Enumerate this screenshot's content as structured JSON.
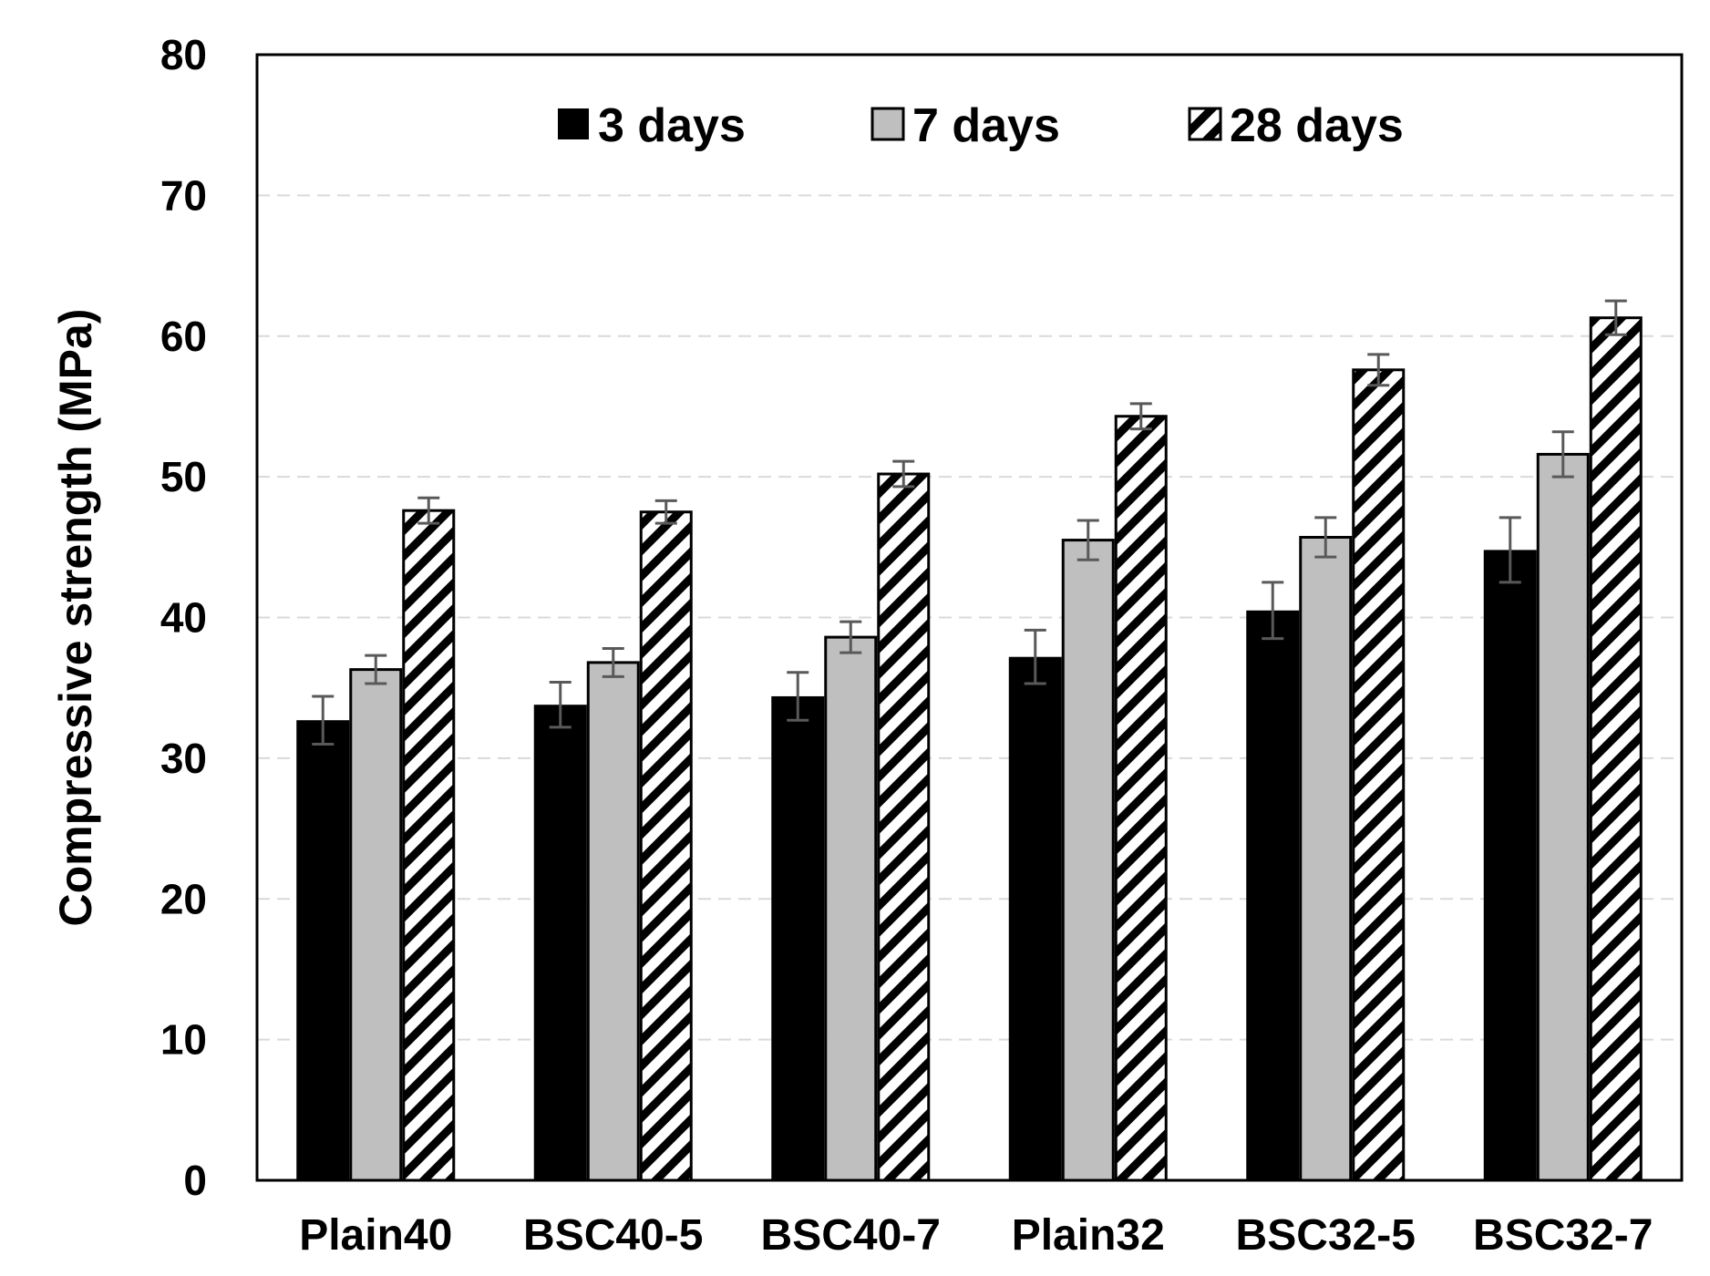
{
  "chart_data": {
    "type": "bar",
    "title": "",
    "xlabel": "",
    "ylabel": "Compressive strength (MPa)",
    "ylim": [
      0,
      80
    ],
    "yticks": [
      0,
      10,
      20,
      30,
      40,
      50,
      60,
      70,
      80
    ],
    "grid": true,
    "legend_position": "top",
    "categories": [
      "Plain40",
      "BSC40-5",
      "BSC40-7",
      "Plain32",
      "BSC32-5",
      "BSC32-7"
    ],
    "series": [
      {
        "name": "3 days",
        "style": "solid-black",
        "values": [
          32.7,
          33.8,
          34.4,
          37.2,
          40.5,
          44.8
        ],
        "errors": [
          1.7,
          1.6,
          1.7,
          1.9,
          2.0,
          2.3
        ]
      },
      {
        "name": "7 days",
        "style": "solid-gray",
        "values": [
          36.3,
          36.8,
          38.6,
          45.5,
          45.7,
          51.6
        ],
        "errors": [
          1.0,
          1.0,
          1.1,
          1.4,
          1.4,
          1.6
        ]
      },
      {
        "name": "28 days",
        "style": "hatched",
        "values": [
          47.6,
          47.5,
          50.2,
          54.3,
          57.6,
          61.3
        ],
        "errors": [
          0.9,
          0.8,
          0.9,
          0.9,
          1.1,
          1.2
        ]
      }
    ]
  },
  "colors": {
    "series_3d": "#000000",
    "series_7d": "#bfbfbf",
    "series_28d_hatch": "#000000",
    "grid": "#d9d9d9",
    "error_bar": "#595959"
  }
}
